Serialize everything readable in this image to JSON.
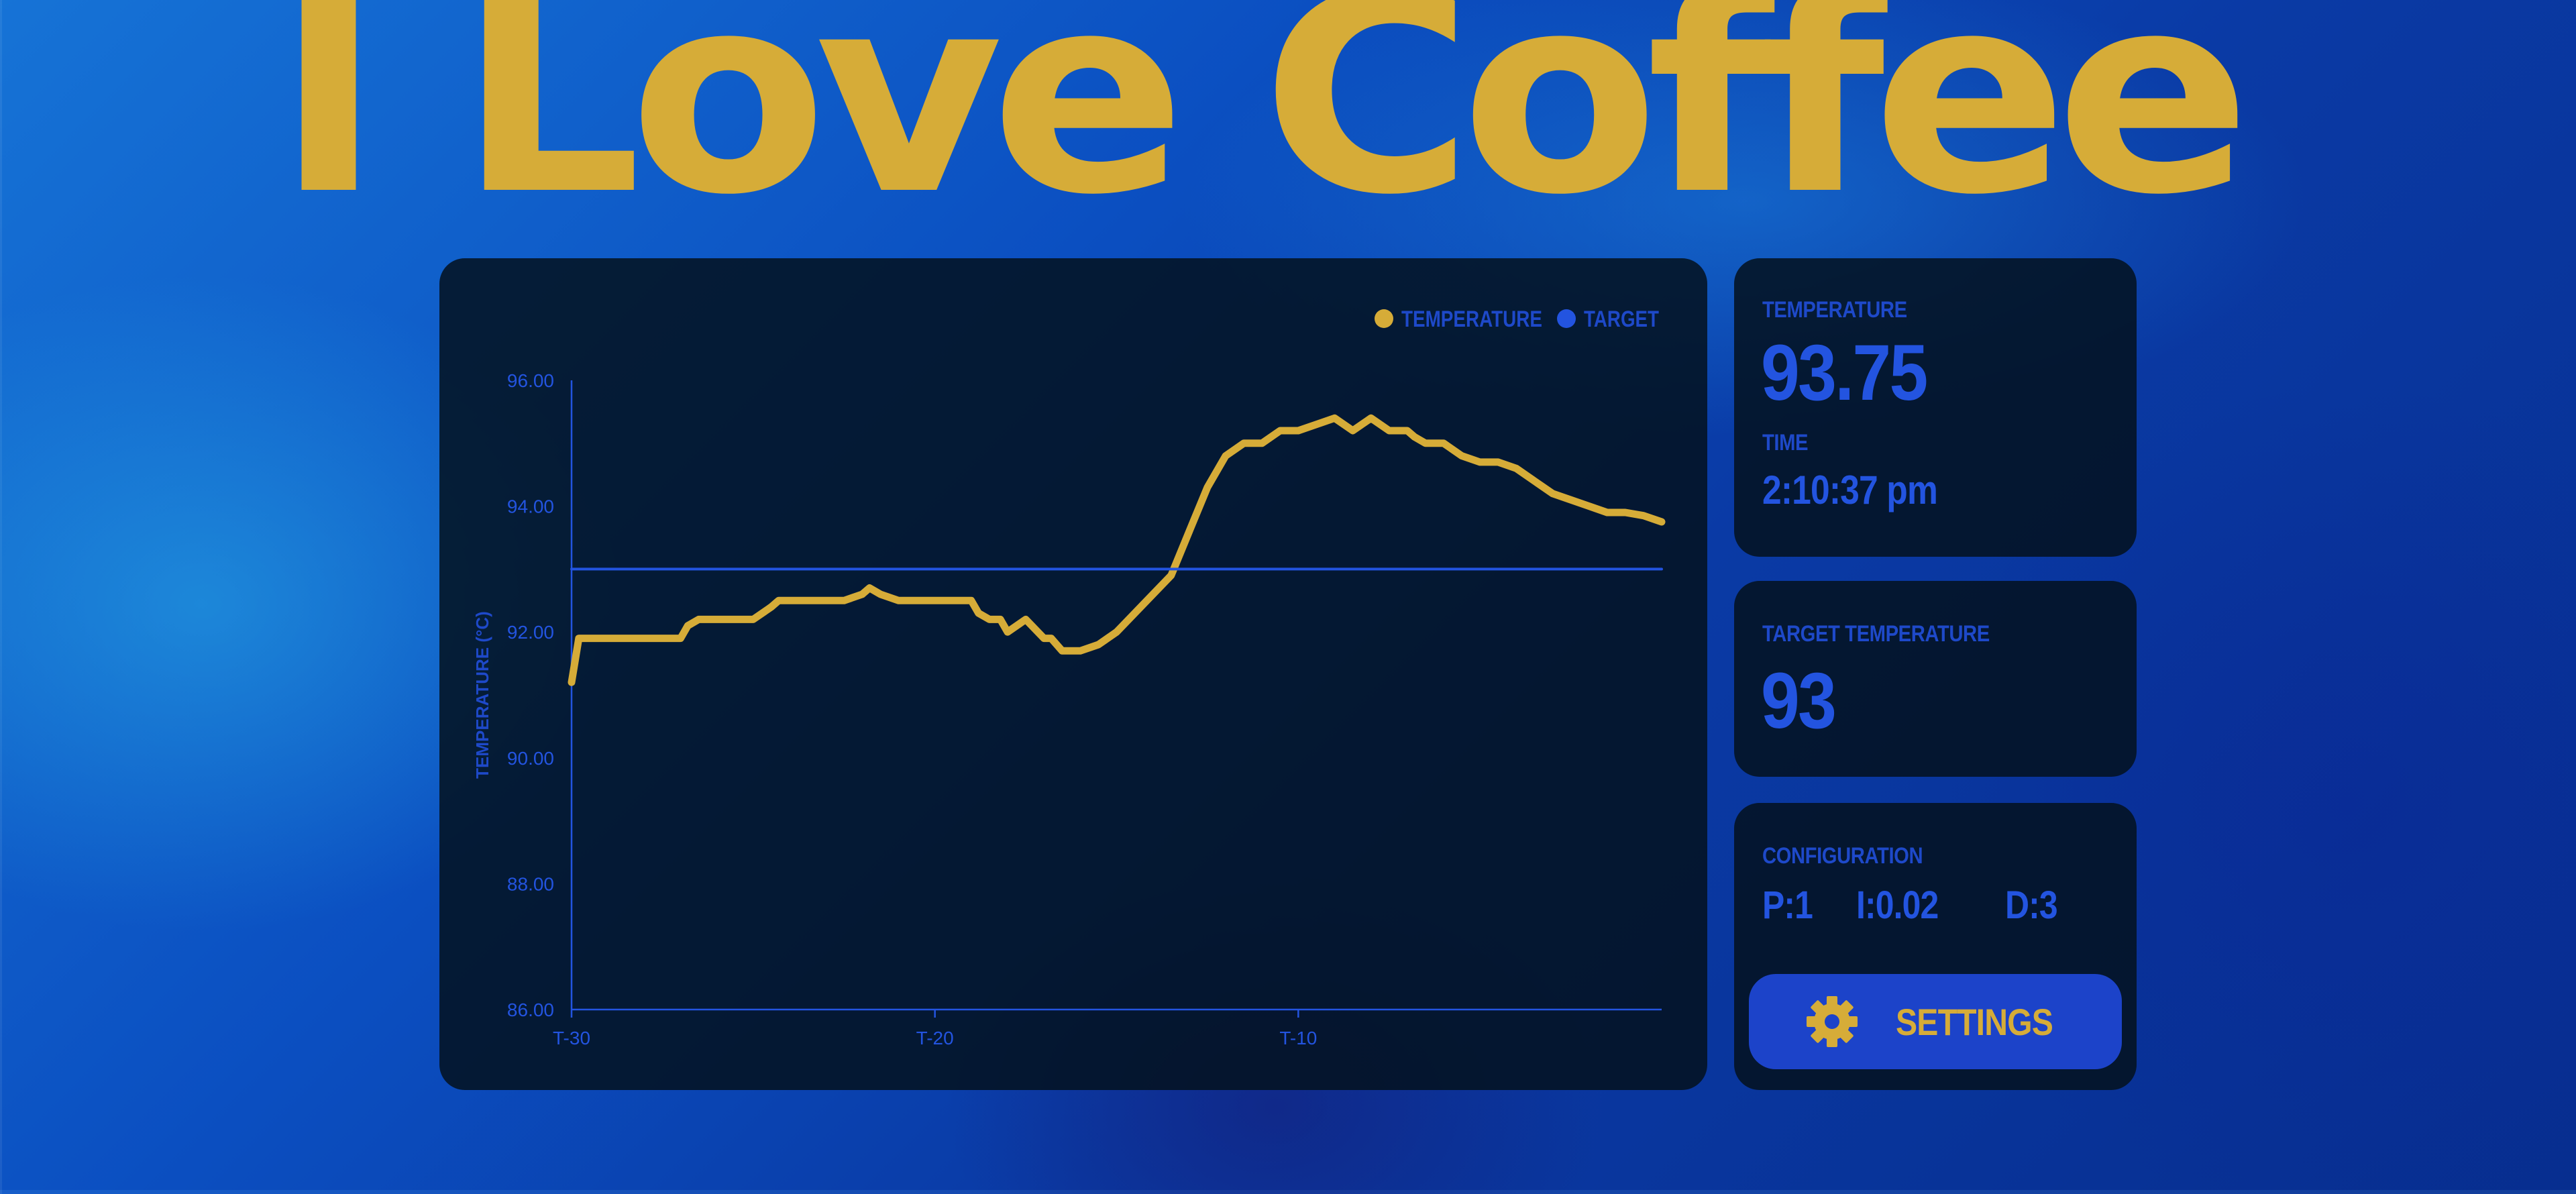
{
  "page": {
    "title": "I Love Coffee",
    "colors": {
      "accent_gold": "#d6ac38",
      "accent_blue": "#2354e0",
      "label_blue": "#1e49c9",
      "panel": "#03121e",
      "button": "#1c43c9"
    }
  },
  "current": {
    "temperature_label": "TEMPERATURE",
    "temperature_value": "93.75",
    "time_label": "TIME",
    "time_value": "2:10:37 pm"
  },
  "target": {
    "label": "TARGET TEMPERATURE",
    "value": "93"
  },
  "config": {
    "label": "CONFIGURATION",
    "p": "P:1",
    "i": "I:0.02",
    "d": "D:3",
    "settings_label": "SETTINGS",
    "settings_icon": "gear-icon"
  },
  "chart_data": {
    "type": "line",
    "ylabel": "TEMPERATURE (°C)",
    "xlabel": "",
    "ylim": [
      86,
      96
    ],
    "y_ticks": [
      "96.00",
      "94.00",
      "92.00",
      "90.00",
      "88.00",
      "86.00"
    ],
    "x_ticks": [
      "T-30",
      "T-20",
      "T-10"
    ],
    "x_tick_positions": [
      -30,
      -20,
      -10
    ],
    "xlim": [
      -30,
      0
    ],
    "legend": [
      "TEMPERATURE",
      "TARGET"
    ],
    "legend_position": "top-right",
    "series": [
      {
        "name": "TEMPERATURE",
        "color": "#d6ac38",
        "x": [
          -30,
          -29.8,
          -29.5,
          -29,
          -28.5,
          -28,
          -27.5,
          -27,
          -26.8,
          -26.5,
          -26,
          -25.5,
          -25,
          -24.5,
          -24.3,
          -24,
          -23.5,
          -23,
          -22.5,
          -22,
          -21.8,
          -21.5,
          -21,
          -20.5,
          -20,
          -19.5,
          -19,
          -18.8,
          -18.5,
          -18.2,
          -18,
          -17.5,
          -17,
          -16.8,
          -16.5,
          -16,
          -15.5,
          -15,
          -14.5,
          -14,
          -13.5,
          -13,
          -12.5,
          -12,
          -11.5,
          -11,
          -10.5,
          -10,
          -9.5,
          -9,
          -8.5,
          -8,
          -7.5,
          -7,
          -6.8,
          -6.5,
          -6.2,
          -6,
          -5.5,
          -5,
          -4.5,
          -4,
          -3.5,
          -3,
          -2.5,
          -2,
          -1.5,
          -1,
          -0.5,
          0
        ],
        "values": [
          91.2,
          91.9,
          91.9,
          91.9,
          91.9,
          91.9,
          91.9,
          91.9,
          92.1,
          92.2,
          92.2,
          92.2,
          92.2,
          92.4,
          92.5,
          92.5,
          92.5,
          92.5,
          92.5,
          92.6,
          92.7,
          92.6,
          92.5,
          92.5,
          92.5,
          92.5,
          92.5,
          92.3,
          92.2,
          92.2,
          92.0,
          92.2,
          91.9,
          91.9,
          91.7,
          91.7,
          91.8,
          92.0,
          92.3,
          92.6,
          92.9,
          93.6,
          94.3,
          94.8,
          95.0,
          95.0,
          95.2,
          95.2,
          95.3,
          95.4,
          95.2,
          95.4,
          95.2,
          95.2,
          95.1,
          95.0,
          95.0,
          95.0,
          94.8,
          94.7,
          94.7,
          94.6,
          94.4,
          94.2,
          94.1,
          94.0,
          93.9,
          93.9,
          93.85,
          93.75
        ]
      },
      {
        "name": "TARGET",
        "color": "#2354e0",
        "x": [
          -30,
          0
        ],
        "values": [
          93,
          93
        ]
      }
    ]
  }
}
